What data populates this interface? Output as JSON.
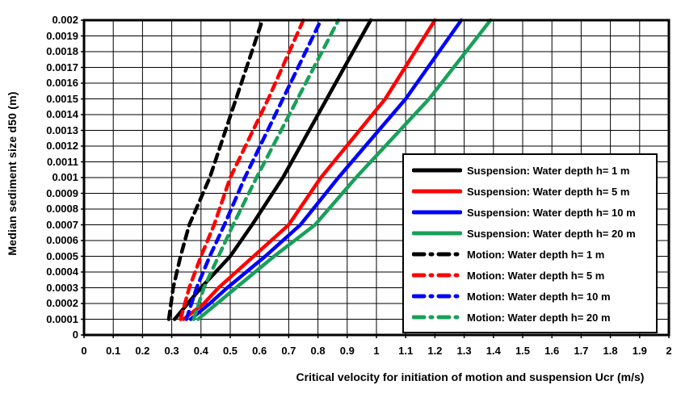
{
  "figure": {
    "background": "#ffffff",
    "grid_color": "#000000",
    "border_color": "#000000"
  },
  "chart_data": {
    "type": "line",
    "title": "",
    "xlabel": "Critical velocity for initiation of motion and suspension Ucr (m/s)",
    "ylabel": "Median sediment size d50 (m)",
    "xlim": [
      0,
      2
    ],
    "ylim": [
      0,
      0.002
    ],
    "grid": true,
    "legend_position": "inside-right",
    "x_ticks": [
      "0",
      "0.1",
      "0.2",
      "0.3",
      "0.4",
      "0.5",
      "0.6",
      "0.7",
      "0.8",
      "0.9",
      "1",
      "1.1",
      "1.2",
      "1.3",
      "1.4",
      "1.5",
      "1.6",
      "1.7",
      "1.8",
      "1.9",
      "2"
    ],
    "y_ticks": [
      "0.002",
      "0.0019",
      "0.0018",
      "0.0017",
      "0.0016",
      "0.0015",
      "0.0014",
      "0.0013",
      "0.0012",
      "0.0011",
      "0.001",
      "0.0009",
      "0.0008",
      "0.0007",
      "0.0006",
      "0.0005",
      "0.0004",
      "0.0003",
      "0.0002",
      "0.0001",
      "0"
    ],
    "series": [
      {
        "name": "Suspension: Water depth h= 1 m",
        "color": "#000000",
        "style": "solid",
        "points": [
          [
            0.0001,
            0.31
          ],
          [
            0.0002,
            0.355
          ],
          [
            0.0003,
            0.4
          ],
          [
            0.0005,
            0.5
          ],
          [
            0.0007,
            0.575
          ],
          [
            0.001,
            0.68
          ],
          [
            0.0015,
            0.83
          ],
          [
            0.002,
            0.98
          ]
        ]
      },
      {
        "name": "Suspension: Water depth h= 5 m",
        "color": "#ff0000",
        "style": "solid",
        "points": [
          [
            0.0001,
            0.34
          ],
          [
            0.0002,
            0.41
          ],
          [
            0.0003,
            0.46
          ],
          [
            0.0005,
            0.58
          ],
          [
            0.0007,
            0.7
          ],
          [
            0.001,
            0.81
          ],
          [
            0.0015,
            1.03
          ],
          [
            0.002,
            1.2
          ]
        ]
      },
      {
        "name": "Suspension: Water depth h= 10 m",
        "color": "#0000ff",
        "style": "solid",
        "points": [
          [
            0.0001,
            0.365
          ],
          [
            0.0002,
            0.43
          ],
          [
            0.0003,
            0.49
          ],
          [
            0.0005,
            0.62
          ],
          [
            0.0007,
            0.74
          ],
          [
            0.001,
            0.87
          ],
          [
            0.0015,
            1.1
          ],
          [
            0.002,
            1.29
          ]
        ]
      },
      {
        "name": "Suspension: Water depth h= 20 m",
        "color": "#19a05a",
        "style": "solid",
        "points": [
          [
            0.0001,
            0.39
          ],
          [
            0.0002,
            0.455
          ],
          [
            0.0003,
            0.52
          ],
          [
            0.0005,
            0.65
          ],
          [
            0.0007,
            0.79
          ],
          [
            0.001,
            0.93
          ],
          [
            0.0015,
            1.18
          ],
          [
            0.002,
            1.39
          ]
        ]
      },
      {
        "name": "Motion: Water depth h= 1 m",
        "color": "#000000",
        "style": "dashed",
        "points": [
          [
            0.0001,
            0.29
          ],
          [
            0.0003,
            0.305
          ],
          [
            0.0005,
            0.33
          ],
          [
            0.0007,
            0.36
          ],
          [
            0.001,
            0.43
          ],
          [
            0.0015,
            0.52
          ],
          [
            0.002,
            0.61
          ]
        ]
      },
      {
        "name": "Motion: Water depth h= 5 m",
        "color": "#ff0000",
        "style": "dashed",
        "points": [
          [
            0.0001,
            0.33
          ],
          [
            0.0003,
            0.36
          ],
          [
            0.0005,
            0.4
          ],
          [
            0.0007,
            0.445
          ],
          [
            0.001,
            0.5
          ],
          [
            0.0015,
            0.63
          ],
          [
            0.002,
            0.75
          ]
        ]
      },
      {
        "name": "Motion: Water depth h= 10 m",
        "color": "#0000ff",
        "style": "dashed",
        "points": [
          [
            0.0001,
            0.35
          ],
          [
            0.0003,
            0.385
          ],
          [
            0.0005,
            0.43
          ],
          [
            0.0007,
            0.48
          ],
          [
            0.001,
            0.55
          ],
          [
            0.0015,
            0.68
          ],
          [
            0.002,
            0.81
          ]
        ]
      },
      {
        "name": "Motion: Water depth h= 20 m",
        "color": "#19a05a",
        "style": "dashed",
        "points": [
          [
            0.0001,
            0.375
          ],
          [
            0.0003,
            0.41
          ],
          [
            0.0005,
            0.46
          ],
          [
            0.0007,
            0.51
          ],
          [
            0.001,
            0.59
          ],
          [
            0.0015,
            0.73
          ],
          [
            0.002,
            0.87
          ]
        ]
      }
    ]
  }
}
